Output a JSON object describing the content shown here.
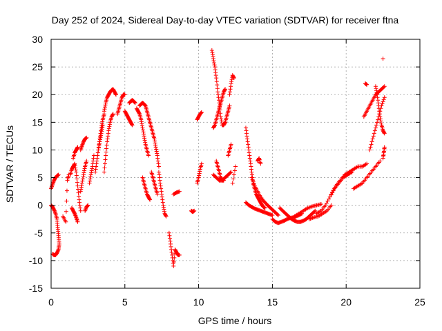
{
  "chart_data": {
    "type": "scatter",
    "title": "Day 252 of 2024, Sidereal Day-to-day VTEC variation (SDTVAR) for receiver ftna",
    "xlabel": "GPS time / hours",
    "ylabel": "SDTVAR / TECUs",
    "xlim": [
      0,
      25
    ],
    "ylim": [
      -15,
      30
    ],
    "xticks": [
      0,
      5,
      10,
      15,
      20,
      25
    ],
    "yticks": [
      -15,
      -10,
      -5,
      0,
      5,
      10,
      15,
      20,
      25,
      30
    ],
    "grid": true,
    "marker": "+",
    "color": "#ff0000",
    "series": [
      {
        "name": "seg01",
        "x": [
          0.0,
          0.1,
          0.2,
          0.3,
          0.4,
          0.5
        ],
        "y": [
          3.0,
          3.8,
          4.5,
          5.0,
          5.3,
          5.5
        ]
      },
      {
        "name": "seg02",
        "x": [
          0.0,
          0.1,
          0.2,
          0.3,
          0.4,
          0.45,
          0.5,
          0.55,
          0.5,
          0.4,
          0.3,
          0.2,
          0.1
        ],
        "y": [
          0.0,
          -0.3,
          -0.8,
          -1.5,
          -2.5,
          -4.0,
          -5.5,
          -7.0,
          -8.0,
          -8.6,
          -9.0,
          -9.0,
          -8.8
        ]
      },
      {
        "name": "seg03",
        "x": [
          0.8,
          1.0,
          1.1,
          1.2
        ],
        "y": [
          -2.0,
          -3.0,
          4.5,
          5.5
        ]
      },
      {
        "name": "seg04",
        "x": [
          1.3,
          1.4,
          1.5,
          1.6,
          1.7,
          1.8,
          1.9,
          2.0
        ],
        "y": [
          5.5,
          6.5,
          7.0,
          7.5,
          6.0,
          3.5,
          1.0,
          -1.0
        ]
      },
      {
        "name": "seg05",
        "x": [
          1.4,
          1.5,
          1.6,
          1.7,
          1.8
        ],
        "y": [
          -0.5,
          -1.0,
          -1.5,
          -2.2,
          -3.0
        ]
      },
      {
        "name": "seg06",
        "x": [
          1.5,
          1.6,
          1.7,
          1.8
        ],
        "y": [
          8.5,
          9.5,
          10.0,
          10.5
        ]
      },
      {
        "name": "seg07",
        "x": [
          2.0,
          2.1,
          2.2,
          2.3,
          2.4
        ],
        "y": [
          2.5,
          4.0,
          5.5,
          7.0,
          8.0
        ]
      },
      {
        "name": "seg08",
        "x": [
          2.0,
          2.1,
          2.2,
          2.3,
          2.4
        ],
        "y": [
          10.0,
          10.8,
          11.5,
          12.0,
          12.2
        ]
      },
      {
        "name": "seg09",
        "x": [
          2.3,
          2.4,
          2.5
        ],
        "y": [
          -1.0,
          -0.3,
          0.0
        ]
      },
      {
        "name": "seg10",
        "x": [
          2.6,
          2.7,
          2.8,
          2.9
        ],
        "y": [
          4.0,
          5.5,
          7.0,
          9.0
        ]
      },
      {
        "name": "seg11",
        "x": [
          3.0,
          3.1,
          3.2,
          3.3,
          3.4,
          3.5,
          3.6
        ],
        "y": [
          6.0,
          8.0,
          10.0,
          12.0,
          14.0,
          15.5,
          16.5
        ]
      },
      {
        "name": "seg12",
        "x": [
          3.2,
          3.3,
          3.4,
          3.5
        ],
        "y": [
          10.0,
          11.5,
          13.0,
          14.5
        ]
      },
      {
        "name": "seg13",
        "x": [
          3.6,
          3.7,
          3.8,
          3.9,
          4.0,
          4.1,
          4.2,
          4.3,
          4.4
        ],
        "y": [
          17.0,
          18.5,
          19.5,
          20.0,
          20.5,
          20.8,
          21.0,
          20.5,
          20.0
        ]
      },
      {
        "name": "seg14",
        "x": [
          3.6,
          3.7,
          3.8,
          3.9,
          4.0,
          4.1,
          4.2
        ],
        "y": [
          6.0,
          9.0,
          11.5,
          13.5,
          15.0,
          16.0,
          16.5
        ]
      },
      {
        "name": "seg15",
        "x": [
          4.5,
          4.6,
          4.7,
          4.8,
          4.9,
          5.0
        ],
        "y": [
          16.5,
          17.5,
          18.5,
          19.5,
          20.0,
          20.0
        ]
      },
      {
        "name": "seg16",
        "x": [
          5.0,
          5.1,
          5.2,
          5.3,
          5.4,
          5.5
        ],
        "y": [
          17.0,
          16.5,
          16.0,
          15.5,
          15.0,
          14.5
        ]
      },
      {
        "name": "seg17",
        "x": [
          5.3,
          5.4,
          5.5,
          5.6,
          5.7
        ],
        "y": [
          18.5,
          18.8,
          19.0,
          18.8,
          18.5
        ]
      },
      {
        "name": "seg18",
        "x": [
          5.8,
          5.9,
          6.0,
          6.1,
          6.2,
          6.3,
          6.4,
          6.5,
          6.6
        ],
        "y": [
          17.5,
          17.0,
          16.5,
          15.5,
          14.0,
          12.5,
          11.0,
          10.0,
          9.0
        ]
      },
      {
        "name": "seg19",
        "x": [
          6.0,
          6.1,
          6.2,
          6.3,
          6.4,
          6.5,
          6.6,
          6.7,
          6.8,
          6.9,
          7.0,
          7.1,
          7.2,
          7.3
        ],
        "y": [
          18.0,
          18.3,
          18.5,
          18.3,
          18.0,
          17.0,
          16.0,
          15.0,
          14.0,
          13.0,
          12.0,
          10.5,
          9.0,
          7.0
        ]
      },
      {
        "name": "seg20",
        "x": [
          6.2,
          6.3,
          6.4,
          6.5,
          6.6,
          6.7
        ],
        "y": [
          5.0,
          4.0,
          3.0,
          2.0,
          1.5,
          1.0
        ]
      },
      {
        "name": "seg21",
        "x": [
          6.8,
          6.9,
          7.0,
          7.1,
          7.2
        ],
        "y": [
          6.0,
          5.0,
          4.0,
          3.0,
          2.0
        ]
      },
      {
        "name": "seg22",
        "x": [
          7.3,
          7.4,
          7.5,
          7.6,
          7.7,
          7.8
        ],
        "y": [
          6.0,
          4.0,
          2.0,
          0.0,
          -1.5,
          -2.0
        ]
      },
      {
        "name": "seg23",
        "x": [
          8.0,
          8.1,
          8.2,
          8.3,
          8.4,
          8.5,
          8.6,
          8.7
        ],
        "y": [
          -5.0,
          -7.0,
          -9.0,
          -11.0,
          -8.0,
          -8.5,
          -9.0,
          -9.0
        ]
      },
      {
        "name": "seg24",
        "x": [
          8.3,
          8.5,
          8.7
        ],
        "y": [
          2.0,
          2.3,
          2.5
        ]
      },
      {
        "name": "seg25",
        "x": [
          9.5,
          9.6,
          9.7
        ],
        "y": [
          -1.0,
          -1.2,
          -1.0
        ]
      },
      {
        "name": "seg26",
        "x": [
          9.9,
          10.0,
          10.1,
          10.2
        ],
        "y": [
          4.0,
          5.0,
          6.5,
          7.5
        ]
      },
      {
        "name": "seg27",
        "x": [
          9.9,
          10.0,
          10.1,
          10.2
        ],
        "y": [
          15.5,
          16.0,
          16.5,
          16.8
        ]
      },
      {
        "name": "seg28",
        "x": [
          10.9,
          11.0,
          11.1,
          11.2,
          11.3,
          11.4,
          11.5,
          11.6,
          11.7,
          11.8,
          11.9,
          12.0,
          12.1
        ],
        "y": [
          28.0,
          26.5,
          25.0,
          23.0,
          20.5,
          18.5,
          16.0,
          14.5,
          14.5,
          15.0,
          16.0,
          17.0,
          18.0
        ]
      },
      {
        "name": "seg29",
        "x": [
          11.0,
          11.1,
          11.2,
          11.3,
          11.4,
          11.5,
          11.6,
          11.7,
          11.8
        ],
        "y": [
          14.0,
          14.5,
          15.5,
          16.5,
          17.5,
          18.5,
          19.5,
          20.5,
          21.0
        ]
      },
      {
        "name": "seg30",
        "x": [
          11.0,
          11.2,
          11.4,
          11.6,
          11.8,
          12.0,
          12.2
        ],
        "y": [
          5.5,
          5.0,
          4.5,
          4.5,
          5.0,
          5.5,
          6.0
        ]
      },
      {
        "name": "seg31",
        "x": [
          11.2,
          11.3,
          11.4,
          11.5,
          11.6,
          11.7
        ],
        "y": [
          8.0,
          7.0,
          6.0,
          5.0,
          4.5,
          4.5
        ]
      },
      {
        "name": "seg32",
        "x": [
          12.0,
          12.1,
          12.2
        ],
        "y": [
          9.0,
          10.0,
          11.0
        ]
      },
      {
        "name": "seg33",
        "x": [
          12.1,
          12.2,
          12.3,
          12.4
        ],
        "y": [
          20.0,
          22.0,
          23.5,
          23.0
        ]
      },
      {
        "name": "seg34",
        "x": [
          12.3,
          12.5
        ],
        "y": [
          4.0,
          7.0
        ]
      },
      {
        "name": "seg35",
        "x": [
          13.2,
          13.3,
          13.4,
          13.5,
          13.6,
          13.7,
          13.8,
          13.9,
          14.0,
          14.1,
          14.2,
          14.3,
          14.4,
          14.5
        ],
        "y": [
          14.0,
          12.0,
          10.0,
          8.0,
          6.0,
          4.0,
          3.0,
          2.0,
          1.5,
          1.0,
          0.5,
          0.0,
          -0.3,
          -0.5
        ]
      },
      {
        "name": "seg36",
        "x": [
          13.2,
          13.4,
          13.6,
          13.8,
          14.0,
          14.2,
          14.4,
          14.6,
          14.8,
          15.0
        ],
        "y": [
          0.5,
          0.0,
          -0.3,
          -0.6,
          -0.8,
          -1.0,
          -1.2,
          -1.4,
          -1.6,
          -1.8
        ]
      },
      {
        "name": "seg37",
        "x": [
          13.6,
          13.8,
          14.0,
          14.2,
          14.4,
          14.6,
          14.8,
          15.0,
          15.2,
          15.4
        ],
        "y": [
          5.0,
          3.5,
          2.5,
          1.5,
          0.8,
          0.2,
          -0.3,
          -0.8,
          -1.3,
          -1.8
        ]
      },
      {
        "name": "seg38",
        "x": [
          14.0,
          14.1,
          14.2
        ],
        "y": [
          8.0,
          8.5,
          7.5
        ]
      },
      {
        "name": "seg39",
        "x": [
          15.0,
          15.2,
          15.4,
          15.6,
          15.8,
          16.0,
          16.2,
          16.4,
          16.6,
          16.8,
          17.0
        ],
        "y": [
          -2.5,
          -3.0,
          -3.2,
          -3.0,
          -2.8,
          -2.5,
          -2.3,
          -2.2,
          -2.0,
          -1.8,
          -1.5
        ]
      },
      {
        "name": "seg40",
        "x": [
          15.5,
          15.7,
          15.9,
          16.1,
          16.3,
          16.5,
          16.7,
          16.9,
          17.1,
          17.3,
          17.5,
          17.7,
          17.9
        ],
        "y": [
          -0.5,
          -1.0,
          -1.5,
          -2.0,
          -2.5,
          -2.8,
          -3.0,
          -3.0,
          -2.8,
          -2.5,
          -2.0,
          -1.5,
          -1.0
        ]
      },
      {
        "name": "seg41",
        "x": [
          16.5,
          16.8,
          17.1,
          17.4,
          17.7,
          18.0,
          18.3
        ],
        "y": [
          -2.0,
          -1.5,
          -1.0,
          -0.5,
          -0.2,
          0.0,
          0.2
        ]
      },
      {
        "name": "seg42",
        "x": [
          17.5,
          17.8,
          18.1,
          18.4,
          18.7,
          19.0
        ],
        "y": [
          -2.5,
          -2.2,
          -2.0,
          -1.5,
          -1.0,
          0.0
        ]
      },
      {
        "name": "seg43",
        "x": [
          18.0,
          18.3,
          18.6,
          18.9,
          19.2,
          19.5,
          19.8,
          20.1,
          20.4
        ],
        "y": [
          -1.5,
          -1.0,
          0.0,
          1.5,
          3.0,
          4.0,
          5.0,
          5.5,
          6.0
        ]
      },
      {
        "name": "seg44",
        "x": [
          19.0,
          19.3,
          19.6,
          19.9,
          20.2,
          20.5,
          20.8,
          21.1,
          21.4
        ],
        "y": [
          2.0,
          3.5,
          4.5,
          5.5,
          6.0,
          6.5,
          7.0,
          7.0,
          7.5
        ]
      },
      {
        "name": "seg45",
        "x": [
          20.5,
          20.8,
          21.1,
          21.4,
          21.7,
          22.0,
          22.3
        ],
        "y": [
          3.0,
          3.5,
          4.0,
          5.0,
          6.0,
          7.0,
          8.0
        ]
      },
      {
        "name": "seg46",
        "x": [
          21.2,
          21.4,
          21.6,
          21.8,
          22.0,
          22.2,
          22.4,
          22.6
        ],
        "y": [
          16.0,
          17.0,
          18.0,
          19.0,
          20.0,
          20.5,
          21.0,
          21.5
        ]
      },
      {
        "name": "seg47",
        "x": [
          21.6,
          21.8,
          22.0,
          22.2,
          22.4,
          22.6
        ],
        "y": [
          10.0,
          12.0,
          14.0,
          16.0,
          18.0,
          19.5
        ]
      },
      {
        "name": "seg48",
        "x": [
          22.0,
          22.1,
          22.2,
          22.3,
          22.4,
          22.5,
          22.6
        ],
        "y": [
          21.5,
          20.0,
          18.0,
          16.0,
          14.5,
          13.5,
          13.0
        ]
      },
      {
        "name": "seg49",
        "x": [
          21.3,
          21.4
        ],
        "y": [
          22.0,
          21.8
        ]
      },
      {
        "name": "seg50",
        "x": [
          22.5,
          22.55,
          22.6
        ],
        "y": [
          8.5,
          9.5,
          10.5
        ]
      },
      {
        "name": "seg51",
        "x": [
          22.5
        ],
        "y": [
          26.5
        ]
      }
    ]
  }
}
